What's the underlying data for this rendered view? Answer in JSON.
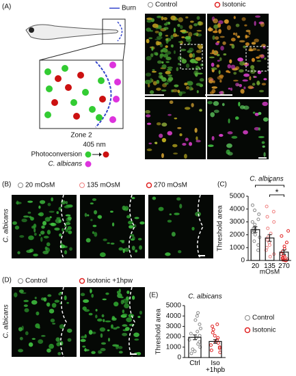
{
  "panel_labels": {
    "a": "(A)",
    "b": "(B)",
    "c": "(C)",
    "d": "(D)",
    "e": "(E)"
  },
  "panel_a": {
    "burn": "Burn",
    "zone": "Zone 2",
    "wavelength": "405 nm",
    "photoconversion": "Photoconversion",
    "fungus": "C. albicans",
    "legend": [
      "Control",
      "Isotonic"
    ]
  },
  "panel_b": {
    "legend": [
      "20 mOsM",
      "135 mOsM",
      "270 mOsM"
    ],
    "row_label": "C. albicans"
  },
  "panel_d": {
    "legend": [
      "Control",
      "Isotonic +1hpw"
    ],
    "row_label": "C. albicans"
  },
  "panel_e_legend": [
    "Control",
    "Isotonic"
  ],
  "chart_data": [
    {
      "type": "bar",
      "title": "C. albicans",
      "y_label": "Threshold area",
      "x_label": "mOsM",
      "categories": [
        "20",
        "135",
        "270"
      ],
      "values": [
        2400,
        1750,
        650
      ],
      "errors": [
        220,
        260,
        170
      ],
      "colors": [
        "#888888",
        "#f08080",
        "#e02020"
      ],
      "points": [
        [
          4300,
          3900,
          3600,
          3200,
          3000,
          2800,
          2600,
          2500,
          2400,
          2300,
          2200,
          2000,
          1800,
          1500,
          1200,
          800
        ],
        [
          4200,
          3800,
          3400,
          3000,
          2500,
          2100,
          1800,
          1600,
          1400,
          1200,
          1000,
          800,
          500,
          300
        ],
        [
          2300,
          1900,
          1400,
          1100,
          900,
          700,
          500,
          400,
          300,
          200,
          150,
          100,
          50,
          0,
          0
        ]
      ],
      "annotations": [
        "*",
        "*"
      ],
      "ylim": [
        0,
        5000
      ],
      "yticks": [
        0,
        1000,
        2000,
        3000,
        4000,
        5000
      ]
    },
    {
      "type": "bar",
      "title": "C. albicans",
      "y_label": "Threshold area",
      "categories": [
        "Ctrl",
        "Iso +1hpb"
      ],
      "values": [
        1950,
        1550
      ],
      "errors": [
        230,
        180
      ],
      "colors": [
        "#888888",
        "#e02020"
      ],
      "points": [
        [
          4300,
          4000,
          3600,
          3200,
          2800,
          2500,
          2300,
          2100,
          1900,
          1700,
          1500,
          1300,
          1000,
          800,
          600,
          400
        ],
        [
          3200,
          3000,
          2700,
          2400,
          2100,
          1900,
          1700,
          1500,
          1400,
          1200,
          1000,
          900,
          700,
          500
        ]
      ],
      "ylim": [
        0,
        5000
      ],
      "yticks": [
        0,
        1000,
        2000,
        3000,
        4000,
        5000
      ]
    }
  ]
}
